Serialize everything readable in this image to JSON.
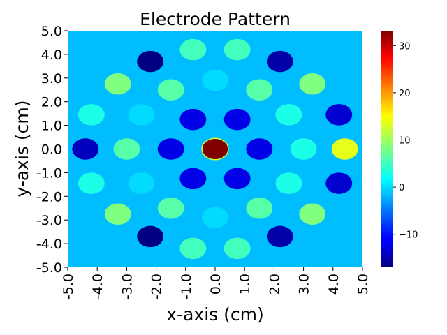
{
  "chart_data": {
    "type": "heatmap",
    "title": "Electrode Pattern",
    "xlabel": "x-axis (cm)",
    "ylabel": "y-axis (cm)",
    "xlim": [
      -5.0,
      5.0
    ],
    "ylim": [
      -5.0,
      5.0
    ],
    "x_ticks": [
      "-5.0",
      "-4.0",
      "-3.0",
      "-2.0",
      "-1.0",
      "0.0",
      "1.0",
      "2.0",
      "3.0",
      "4.0",
      "5.0"
    ],
    "y_ticks": [
      "5.0",
      "4.0",
      "3.0",
      "2.0",
      "1.0",
      "0.0",
      "-1.0",
      "-2.0",
      "-3.0",
      "-4.0",
      "-5.0"
    ],
    "colormap": "jet",
    "colorbar": {
      "range": [
        -17,
        33
      ],
      "ticks": [
        {
          "value": 30,
          "label": "30"
        },
        {
          "value": 20,
          "label": "20"
        },
        {
          "value": 10,
          "label": "10"
        },
        {
          "value": 0,
          "label": "0"
        },
        {
          "value": -10,
          "label": "−10"
        }
      ]
    },
    "background_value": -1.5,
    "electrode_radius_cm": 0.45,
    "electrodes": [
      {
        "x": 0.0,
        "y": 0.0,
        "value": 33
      },
      {
        "x": -0.75,
        "y": 1.25,
        "value": -12
      },
      {
        "x": 0.75,
        "y": 1.25,
        "value": -12
      },
      {
        "x": -1.5,
        "y": 0.0,
        "value": -12
      },
      {
        "x": 1.5,
        "y": 0.0,
        "value": -12
      },
      {
        "x": -0.75,
        "y": -1.25,
        "value": -12
      },
      {
        "x": 0.75,
        "y": -1.25,
        "value": -12
      },
      {
        "x": 0.0,
        "y": 2.9,
        "value": 0
      },
      {
        "x": 0.0,
        "y": -2.9,
        "value": 0
      },
      {
        "x": -2.5,
        "y": 1.45,
        "value": 0
      },
      {
        "x": 2.5,
        "y": 1.45,
        "value": 3
      },
      {
        "x": -2.5,
        "y": -1.45,
        "value": 0
      },
      {
        "x": 2.5,
        "y": -1.45,
        "value": 3
      },
      {
        "x": -1.5,
        "y": 2.5,
        "value": 6
      },
      {
        "x": 1.5,
        "y": 2.5,
        "value": 6
      },
      {
        "x": -3.0,
        "y": 0.0,
        "value": 6
      },
      {
        "x": 3.0,
        "y": 0.0,
        "value": 3
      },
      {
        "x": -1.5,
        "y": -2.5,
        "value": 6
      },
      {
        "x": 1.5,
        "y": -2.5,
        "value": 6
      },
      {
        "x": -0.75,
        "y": 4.2,
        "value": 5
      },
      {
        "x": 0.75,
        "y": 4.2,
        "value": 5
      },
      {
        "x": -0.75,
        "y": -4.2,
        "value": 5
      },
      {
        "x": 0.75,
        "y": -4.2,
        "value": 5
      },
      {
        "x": -3.3,
        "y": 2.75,
        "value": 8
      },
      {
        "x": 3.3,
        "y": 2.75,
        "value": 8
      },
      {
        "x": -3.3,
        "y": -2.75,
        "value": 8
      },
      {
        "x": 3.3,
        "y": -2.75,
        "value": 8
      },
      {
        "x": -4.2,
        "y": 1.45,
        "value": 3
      },
      {
        "x": 4.2,
        "y": 1.45,
        "value": -13
      },
      {
        "x": -4.2,
        "y": -1.45,
        "value": 3
      },
      {
        "x": 4.2,
        "y": -1.45,
        "value": -13
      },
      {
        "x": -4.4,
        "y": 0.0,
        "value": -14
      },
      {
        "x": 4.4,
        "y": 0.0,
        "value": 13
      },
      {
        "x": -2.2,
        "y": 3.7,
        "value": -17
      },
      {
        "x": 2.2,
        "y": 3.7,
        "value": -15
      },
      {
        "x": -2.2,
        "y": -3.7,
        "value": -17
      },
      {
        "x": 2.2,
        "y": -3.7,
        "value": -15
      }
    ]
  }
}
